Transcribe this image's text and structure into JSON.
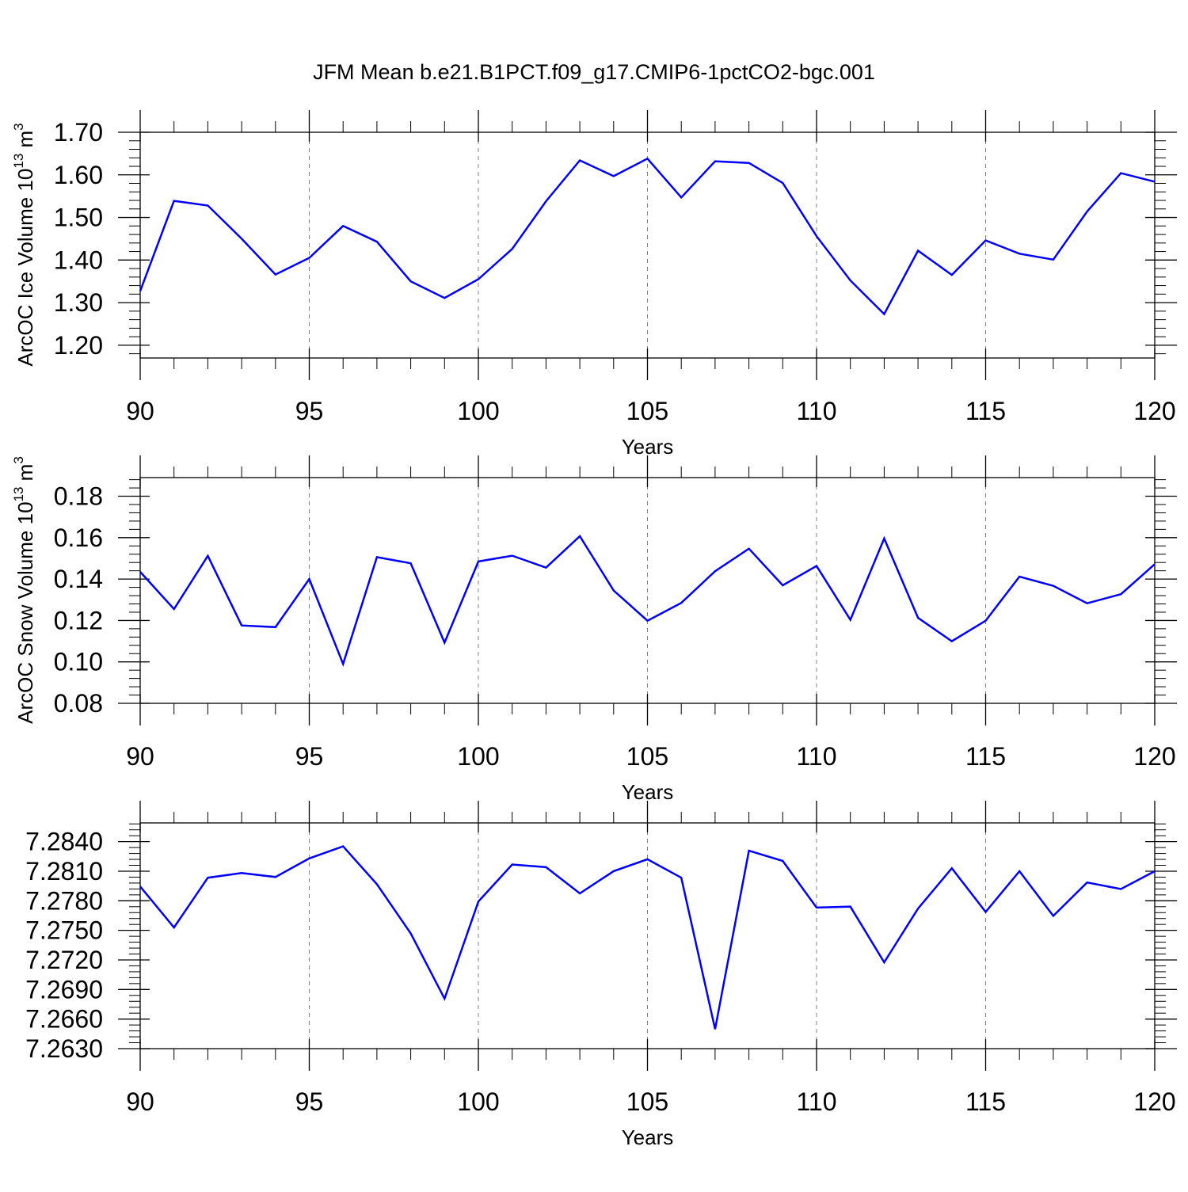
{
  "title": "JFM Mean b.e21.B1PCT.f09_g17.CMIP6-1pctCO2-bgc.001",
  "colors": {
    "line": "#0000ff",
    "axis": "#000000",
    "grid": "#808080"
  },
  "chart_data": [
    {
      "type": "line",
      "ylabel": "ArcOC Ice Volume 10",
      "ylabel_exp": "13",
      "ylabel_unit": " m",
      "ylabel_unit_exp": "3",
      "xlabel": "Years",
      "xlim": [
        90,
        120
      ],
      "ylim": [
        1.17,
        1.7
      ],
      "yticks": [
        1.2,
        1.3,
        1.4,
        1.5,
        1.6,
        1.7
      ],
      "ytick_labels": [
        "1.20",
        "1.30",
        "1.40",
        "1.50",
        "1.60",
        "1.70"
      ],
      "xticks": [
        90,
        95,
        100,
        105,
        110,
        115,
        120
      ],
      "xtick_labels": [
        "90",
        "95",
        "100",
        "105",
        "110",
        "115",
        "120"
      ],
      "grid": "vertical dashed at major x ticks",
      "x": [
        90,
        91,
        92,
        93,
        94,
        95,
        96,
        97,
        98,
        99,
        100,
        101,
        102,
        103,
        104,
        105,
        106,
        107,
        108,
        109,
        110,
        111,
        112,
        113,
        114,
        115,
        116,
        117,
        118,
        119,
        120
      ],
      "values": [
        1.327,
        1.539,
        1.528,
        1.45,
        1.366,
        1.405,
        1.48,
        1.443,
        1.35,
        1.311,
        1.355,
        1.426,
        1.538,
        1.634,
        1.597,
        1.638,
        1.547,
        1.632,
        1.628,
        1.581,
        1.456,
        1.352,
        1.273,
        1.422,
        1.365,
        1.446,
        1.415,
        1.401,
        1.514,
        1.604,
        1.584
      ]
    },
    {
      "type": "line",
      "ylabel": "ArcOC Snow Volume 10",
      "ylabel_exp": "13",
      "ylabel_unit": " m",
      "ylabel_unit_exp": "3",
      "xlabel": "Years",
      "xlim": [
        90,
        120
      ],
      "ylim": [
        0.08,
        0.189
      ],
      "yticks": [
        0.08,
        0.1,
        0.12,
        0.14,
        0.16,
        0.18
      ],
      "ytick_labels": [
        "0.08",
        "0.10",
        "0.12",
        "0.14",
        "0.16",
        "0.18"
      ],
      "xticks": [
        90,
        95,
        100,
        105,
        110,
        115,
        120
      ],
      "xtick_labels": [
        "90",
        "95",
        "100",
        "105",
        "110",
        "115",
        "120"
      ],
      "grid": "vertical dashed at major x ticks",
      "x": [
        90,
        91,
        92,
        93,
        94,
        95,
        96,
        97,
        98,
        99,
        100,
        101,
        102,
        103,
        104,
        105,
        106,
        107,
        108,
        109,
        110,
        111,
        112,
        113,
        114,
        115,
        116,
        117,
        118,
        119,
        120
      ],
      "values": [
        0.1435,
        0.1255,
        0.1512,
        0.1176,
        0.1168,
        0.14,
        0.099,
        0.1506,
        0.1476,
        0.1093,
        0.1485,
        0.1513,
        0.1455,
        0.1607,
        0.1345,
        0.1199,
        0.1285,
        0.1438,
        0.1547,
        0.137,
        0.1463,
        0.1203,
        0.1596,
        0.1213,
        0.11,
        0.1199,
        0.1412,
        0.1367,
        0.1283,
        0.1327,
        0.1472
      ]
    },
    {
      "type": "line",
      "xlabel": "Years",
      "xlim": [
        90,
        120
      ],
      "ylim": [
        7.263,
        7.2859
      ],
      "yticks": [
        7.263,
        7.266,
        7.269,
        7.272,
        7.275,
        7.278,
        7.281,
        7.284
      ],
      "ytick_labels": [
        "7.2630",
        "7.2660",
        "7.2690",
        "7.2720",
        "7.2750",
        "7.2780",
        "7.2810",
        "7.2840"
      ],
      "xticks": [
        90,
        95,
        100,
        105,
        110,
        115,
        120
      ],
      "xtick_labels": [
        "90",
        "95",
        "100",
        "105",
        "110",
        "115",
        "120"
      ],
      "grid": "vertical dashed at major x ticks",
      "x": [
        90,
        91,
        92,
        93,
        94,
        95,
        96,
        97,
        98,
        99,
        100,
        101,
        102,
        103,
        104,
        105,
        106,
        107,
        108,
        109,
        110,
        111,
        112,
        113,
        114,
        115,
        116,
        117,
        118,
        119,
        120
      ],
      "values": [
        7.27945,
        7.27529,
        7.28034,
        7.28081,
        7.28041,
        7.2823,
        7.28352,
        7.27968,
        7.27469,
        7.26807,
        7.27792,
        7.28168,
        7.28141,
        7.27875,
        7.28101,
        7.28221,
        7.28034,
        7.26498,
        7.28308,
        7.28204,
        7.27731,
        7.27741,
        7.27176,
        7.27721,
        7.2813,
        7.27687,
        7.281,
        7.27647,
        7.27986,
        7.27919,
        7.281
      ]
    }
  ]
}
